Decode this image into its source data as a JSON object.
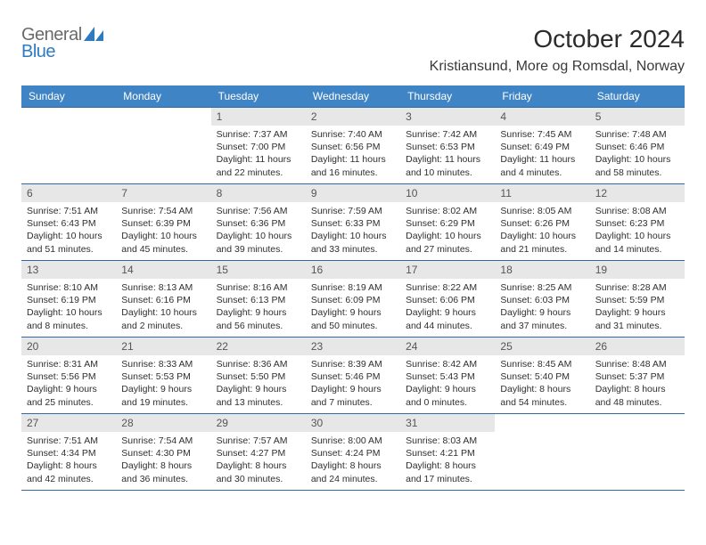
{
  "logo": {
    "word1": "General",
    "word2": "Blue",
    "mark_color": "#2f7bbf",
    "text_color": "#6a6a6a"
  },
  "header": {
    "month_title": "October 2024",
    "location": "Kristiansund, More og Romsdal, Norway"
  },
  "calendar": {
    "header_bg": "#3f84c4",
    "header_fg": "#ffffff",
    "daynum_bg": "#e7e7e7",
    "rule_color": "#2f6aa0",
    "text_color": "#2f2f2f",
    "day_labels": [
      "Sunday",
      "Monday",
      "Tuesday",
      "Wednesday",
      "Thursday",
      "Friday",
      "Saturday"
    ],
    "weeks": [
      [
        null,
        null,
        {
          "n": "1",
          "sr": "7:37 AM",
          "ss": "7:00 PM",
          "dl": "11 hours and 22 minutes."
        },
        {
          "n": "2",
          "sr": "7:40 AM",
          "ss": "6:56 PM",
          "dl": "11 hours and 16 minutes."
        },
        {
          "n": "3",
          "sr": "7:42 AM",
          "ss": "6:53 PM",
          "dl": "11 hours and 10 minutes."
        },
        {
          "n": "4",
          "sr": "7:45 AM",
          "ss": "6:49 PM",
          "dl": "11 hours and 4 minutes."
        },
        {
          "n": "5",
          "sr": "7:48 AM",
          "ss": "6:46 PM",
          "dl": "10 hours and 58 minutes."
        }
      ],
      [
        {
          "n": "6",
          "sr": "7:51 AM",
          "ss": "6:43 PM",
          "dl": "10 hours and 51 minutes."
        },
        {
          "n": "7",
          "sr": "7:54 AM",
          "ss": "6:39 PM",
          "dl": "10 hours and 45 minutes."
        },
        {
          "n": "8",
          "sr": "7:56 AM",
          "ss": "6:36 PM",
          "dl": "10 hours and 39 minutes."
        },
        {
          "n": "9",
          "sr": "7:59 AM",
          "ss": "6:33 PM",
          "dl": "10 hours and 33 minutes."
        },
        {
          "n": "10",
          "sr": "8:02 AM",
          "ss": "6:29 PM",
          "dl": "10 hours and 27 minutes."
        },
        {
          "n": "11",
          "sr": "8:05 AM",
          "ss": "6:26 PM",
          "dl": "10 hours and 21 minutes."
        },
        {
          "n": "12",
          "sr": "8:08 AM",
          "ss": "6:23 PM",
          "dl": "10 hours and 14 minutes."
        }
      ],
      [
        {
          "n": "13",
          "sr": "8:10 AM",
          "ss": "6:19 PM",
          "dl": "10 hours and 8 minutes."
        },
        {
          "n": "14",
          "sr": "8:13 AM",
          "ss": "6:16 PM",
          "dl": "10 hours and 2 minutes."
        },
        {
          "n": "15",
          "sr": "8:16 AM",
          "ss": "6:13 PM",
          "dl": "9 hours and 56 minutes."
        },
        {
          "n": "16",
          "sr": "8:19 AM",
          "ss": "6:09 PM",
          "dl": "9 hours and 50 minutes."
        },
        {
          "n": "17",
          "sr": "8:22 AM",
          "ss": "6:06 PM",
          "dl": "9 hours and 44 minutes."
        },
        {
          "n": "18",
          "sr": "8:25 AM",
          "ss": "6:03 PM",
          "dl": "9 hours and 37 minutes."
        },
        {
          "n": "19",
          "sr": "8:28 AM",
          "ss": "5:59 PM",
          "dl": "9 hours and 31 minutes."
        }
      ],
      [
        {
          "n": "20",
          "sr": "8:31 AM",
          "ss": "5:56 PM",
          "dl": "9 hours and 25 minutes."
        },
        {
          "n": "21",
          "sr": "8:33 AM",
          "ss": "5:53 PM",
          "dl": "9 hours and 19 minutes."
        },
        {
          "n": "22",
          "sr": "8:36 AM",
          "ss": "5:50 PM",
          "dl": "9 hours and 13 minutes."
        },
        {
          "n": "23",
          "sr": "8:39 AM",
          "ss": "5:46 PM",
          "dl": "9 hours and 7 minutes."
        },
        {
          "n": "24",
          "sr": "8:42 AM",
          "ss": "5:43 PM",
          "dl": "9 hours and 0 minutes."
        },
        {
          "n": "25",
          "sr": "8:45 AM",
          "ss": "5:40 PM",
          "dl": "8 hours and 54 minutes."
        },
        {
          "n": "26",
          "sr": "8:48 AM",
          "ss": "5:37 PM",
          "dl": "8 hours and 48 minutes."
        }
      ],
      [
        {
          "n": "27",
          "sr": "7:51 AM",
          "ss": "4:34 PM",
          "dl": "8 hours and 42 minutes."
        },
        {
          "n": "28",
          "sr": "7:54 AM",
          "ss": "4:30 PM",
          "dl": "8 hours and 36 minutes."
        },
        {
          "n": "29",
          "sr": "7:57 AM",
          "ss": "4:27 PM",
          "dl": "8 hours and 30 minutes."
        },
        {
          "n": "30",
          "sr": "8:00 AM",
          "ss": "4:24 PM",
          "dl": "8 hours and 24 minutes."
        },
        {
          "n": "31",
          "sr": "8:03 AM",
          "ss": "4:21 PM",
          "dl": "8 hours and 17 minutes."
        },
        null,
        null
      ]
    ],
    "labels": {
      "sunrise": "Sunrise:",
      "sunset": "Sunset:",
      "daylight": "Daylight:"
    }
  }
}
